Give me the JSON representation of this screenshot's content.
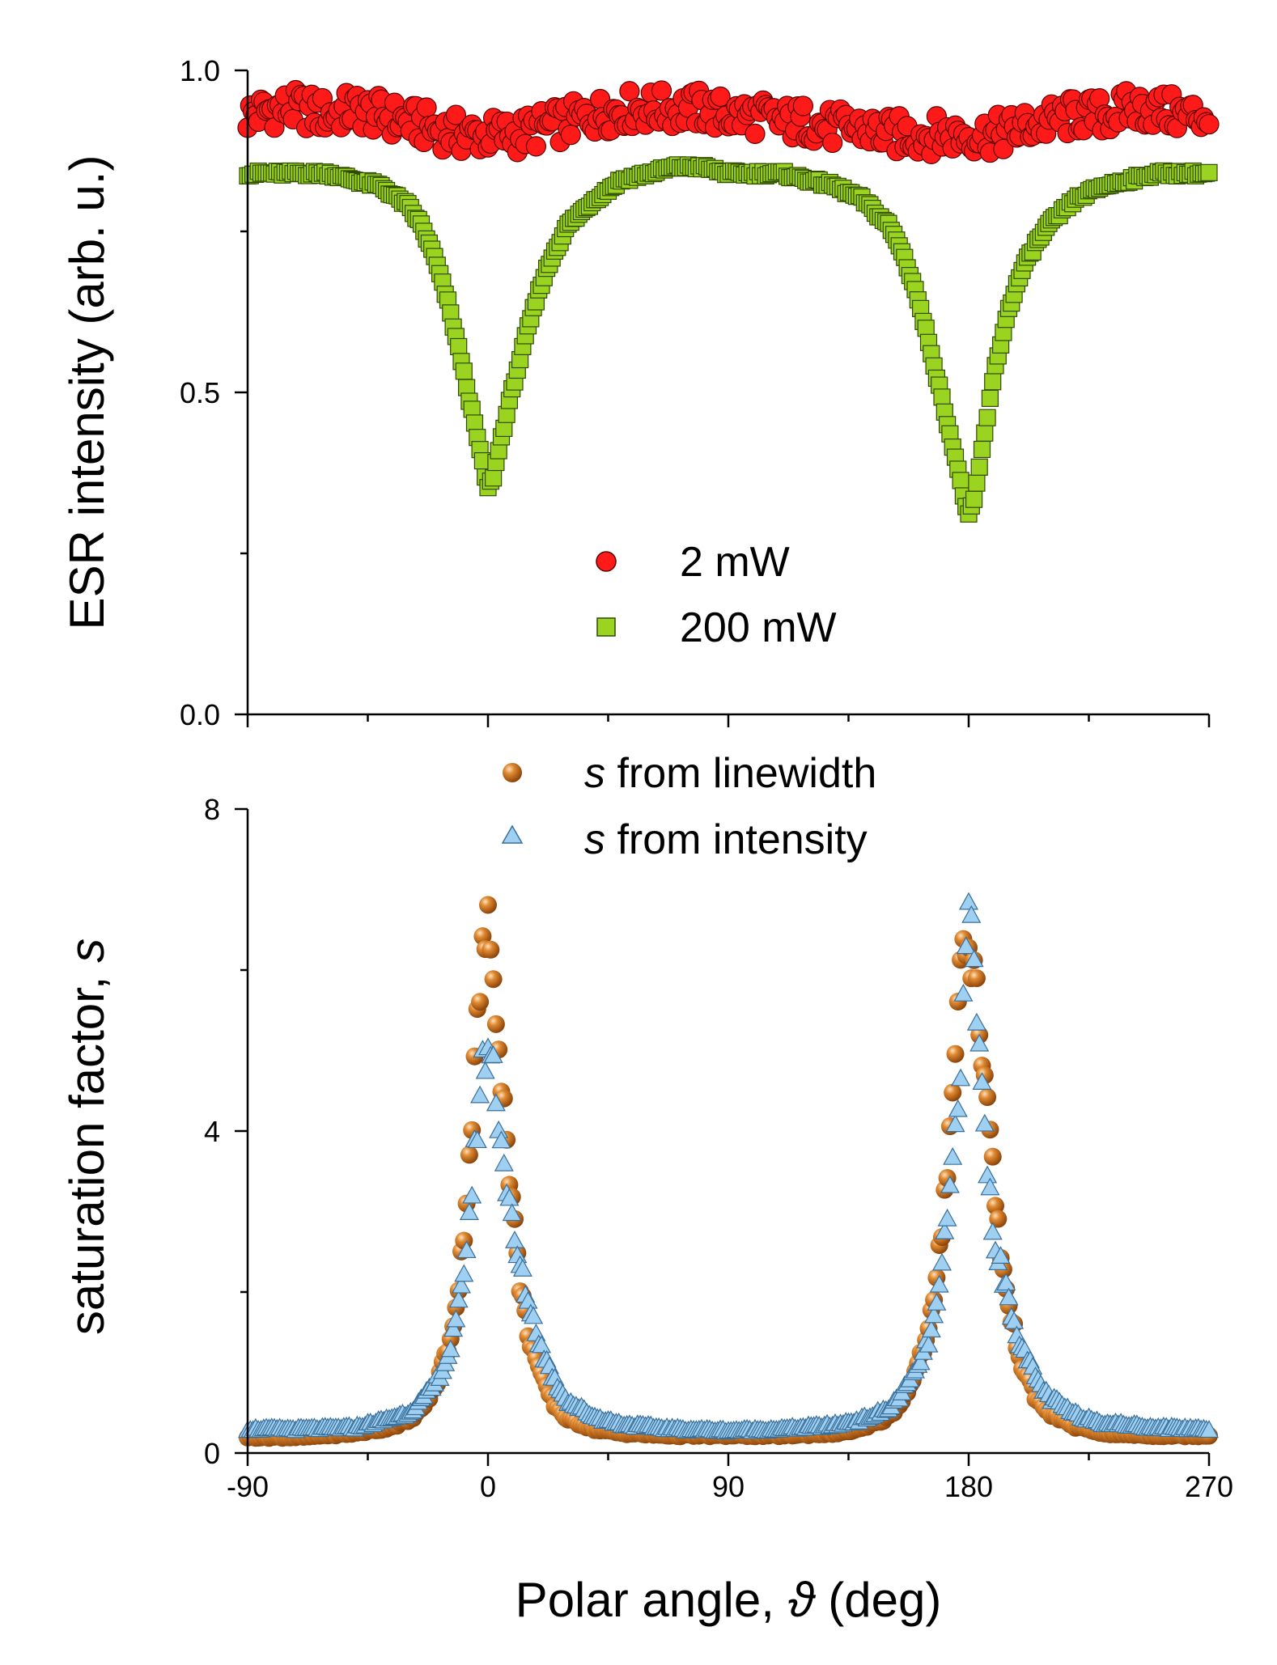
{
  "figure": {
    "xlabel_prefix": "Polar angle, ",
    "xlabel_symbol": "ϑ",
    "xlabel_suffix": " (deg)"
  },
  "chart_data": [
    {
      "type": "scatter",
      "panel": "top",
      "title": "",
      "xlabel": "Polar angle, ϑ (deg)",
      "ylabel": "ESR intensity (arb. u.)",
      "xlim": [
        -90,
        270
      ],
      "ylim": [
        0.0,
        1.0
      ],
      "xticks": [
        -90,
        0,
        90,
        180,
        270
      ],
      "yticks": [
        0.0,
        0.5,
        1.0
      ],
      "ytick_labels": [
        "0.0",
        "0.5",
        "1.0"
      ],
      "legend_position": "center",
      "series": [
        {
          "name": "2 mW",
          "marker": "circle",
          "color": "#ff1a1a",
          "edge": "#5a0000",
          "x": [
            -90,
            -80,
            -70,
            -60,
            -50,
            -40,
            -30,
            -20,
            -10,
            0,
            10,
            20,
            30,
            40,
            50,
            60,
            70,
            80,
            90,
            100,
            110,
            120,
            130,
            140,
            150,
            160,
            170,
            180,
            190,
            200,
            210,
            220,
            230,
            240,
            250,
            260,
            270
          ],
          "y": [
            0.93,
            0.94,
            0.94,
            0.93,
            0.94,
            0.93,
            0.92,
            0.91,
            0.9,
            0.9,
            0.9,
            0.91,
            0.92,
            0.93,
            0.94,
            0.94,
            0.94,
            0.94,
            0.93,
            0.93,
            0.92,
            0.92,
            0.91,
            0.91,
            0.9,
            0.9,
            0.9,
            0.9,
            0.9,
            0.91,
            0.92,
            0.93,
            0.93,
            0.94,
            0.94,
            0.93,
            0.93
          ]
        },
        {
          "name": "200 mW",
          "marker": "square",
          "color": "#9ad420",
          "edge": "#2f4a00",
          "x": [
            -90,
            -80,
            -70,
            -60,
            -50,
            -40,
            -30,
            -25,
            -20,
            -15,
            -10,
            -5,
            -2,
            0,
            2,
            5,
            10,
            15,
            20,
            25,
            30,
            40,
            50,
            60,
            70,
            80,
            90,
            100,
            110,
            120,
            130,
            140,
            150,
            155,
            160,
            165,
            170,
            175,
            178,
            180,
            182,
            185,
            190,
            195,
            200,
            205,
            210,
            220,
            230,
            240,
            250,
            260,
            270
          ],
          "y": [
            0.84,
            0.84,
            0.84,
            0.84,
            0.83,
            0.82,
            0.79,
            0.76,
            0.71,
            0.64,
            0.55,
            0.45,
            0.39,
            0.35,
            0.37,
            0.43,
            0.52,
            0.6,
            0.67,
            0.72,
            0.76,
            0.8,
            0.83,
            0.84,
            0.85,
            0.85,
            0.84,
            0.84,
            0.84,
            0.83,
            0.82,
            0.8,
            0.76,
            0.72,
            0.66,
            0.58,
            0.49,
            0.4,
            0.34,
            0.31,
            0.33,
            0.41,
            0.54,
            0.63,
            0.69,
            0.73,
            0.76,
            0.8,
            0.82,
            0.83,
            0.84,
            0.84,
            0.84
          ]
        }
      ]
    },
    {
      "type": "scatter",
      "panel": "bottom",
      "title": "",
      "xlabel": "Polar angle, ϑ (deg)",
      "ylabel_prefix": "saturation factor, ",
      "ylabel_symbol": "s",
      "xlim": [
        -90,
        270
      ],
      "ylim": [
        0,
        8
      ],
      "xticks": [
        -90,
        0,
        90,
        180,
        270
      ],
      "xtick_labels": [
        "-90",
        "0",
        "90",
        "180",
        "270"
      ],
      "yticks": [
        0,
        4,
        8
      ],
      "ytick_labels": [
        "0",
        "4",
        "8"
      ],
      "legend_position": "top-center",
      "series": [
        {
          "name_italic": "s",
          "name_rest": " from linewidth",
          "marker": "sphere",
          "color": "#c86a14",
          "x": [
            -90,
            -70,
            -50,
            -40,
            -30,
            -25,
            -20,
            -15,
            -12,
            -10,
            -8,
            -6,
            -4,
            -2,
            0,
            2,
            4,
            6,
            8,
            10,
            12,
            15,
            20,
            25,
            30,
            40,
            50,
            70,
            90,
            110,
            130,
            140,
            150,
            155,
            160,
            165,
            168,
            170,
            172,
            174,
            176,
            178,
            180,
            182,
            184,
            186,
            188,
            190,
            192,
            195,
            200,
            205,
            210,
            220,
            230,
            250,
            270
          ],
          "y": [
            0.2,
            0.2,
            0.25,
            0.3,
            0.4,
            0.55,
            0.8,
            1.3,
            1.8,
            2.4,
            3.2,
            4.2,
            5.3,
            6.2,
            6.5,
            6.0,
            5.2,
            4.3,
            3.5,
            2.8,
            2.1,
            1.5,
            0.95,
            0.6,
            0.42,
            0.3,
            0.25,
            0.22,
            0.22,
            0.22,
            0.25,
            0.3,
            0.45,
            0.65,
            1.0,
            1.5,
            2.1,
            2.8,
            3.6,
            4.6,
            5.6,
            6.3,
            6.4,
            6.0,
            5.4,
            4.7,
            3.9,
            3.2,
            2.5,
            1.8,
            1.1,
            0.7,
            0.5,
            0.33,
            0.25,
            0.22,
            0.22
          ]
        },
        {
          "name_italic": "s",
          "name_rest": " from intensity",
          "marker": "triangle",
          "color": "#9fd0f2",
          "edge": "#3a6f9a",
          "x": [
            -90,
            -70,
            -50,
            -40,
            -30,
            -25,
            -20,
            -15,
            -12,
            -10,
            -8,
            -6,
            -4,
            -2,
            0,
            2,
            4,
            6,
            8,
            10,
            15,
            20,
            25,
            30,
            40,
            50,
            70,
            90,
            110,
            130,
            140,
            150,
            155,
            160,
            165,
            168,
            170,
            172,
            174,
            176,
            178,
            180,
            182,
            184,
            186,
            188,
            190,
            195,
            200,
            205,
            210,
            220,
            230,
            250,
            270
          ],
          "y": [
            0.3,
            0.3,
            0.32,
            0.4,
            0.5,
            0.65,
            0.85,
            1.2,
            1.6,
            2.0,
            2.6,
            3.3,
            4.1,
            4.8,
            5.1,
            4.8,
            4.2,
            3.6,
            3.1,
            2.6,
            1.9,
            1.3,
            0.9,
            0.65,
            0.45,
            0.36,
            0.3,
            0.28,
            0.3,
            0.35,
            0.42,
            0.55,
            0.75,
            1.0,
            1.4,
            1.8,
            2.3,
            2.9,
            3.6,
            4.5,
            5.4,
            6.8,
            6.1,
            5.0,
            4.0,
            3.2,
            2.6,
            1.9,
            1.3,
            0.95,
            0.7,
            0.48,
            0.38,
            0.32,
            0.3
          ]
        }
      ]
    }
  ]
}
